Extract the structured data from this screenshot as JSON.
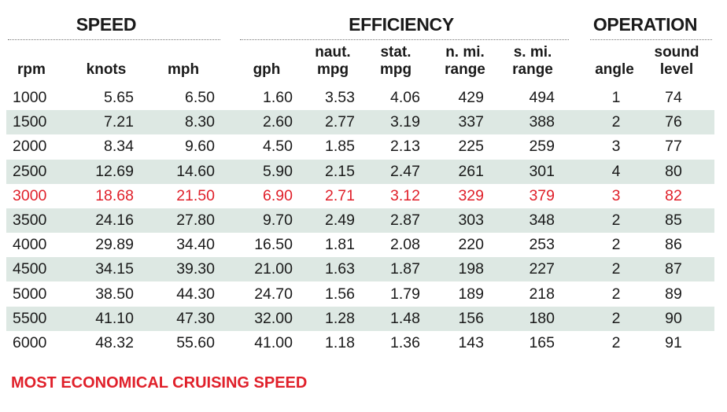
{
  "colors": {
    "highlight": "#e0202a",
    "shade": "#dde8e3",
    "text": "#1a1a1a"
  },
  "groups": {
    "speed": "SPEED",
    "efficiency": "EFFICIENCY",
    "operation": "OPERATION"
  },
  "headers": {
    "rpm": [
      "rpm"
    ],
    "knots": [
      "knots"
    ],
    "mph": [
      "mph"
    ],
    "gph": [
      "gph"
    ],
    "naut_mpg": [
      "naut.",
      "mpg"
    ],
    "stat_mpg": [
      "stat.",
      "mpg"
    ],
    "n_mi_range": [
      "n. mi.",
      "range"
    ],
    "s_mi_range": [
      "s. mi.",
      "range"
    ],
    "angle": [
      "angle"
    ],
    "sound_level": [
      "sound",
      "level"
    ]
  },
  "footnote": "MOST ECONOMICAL CRUISING SPEED",
  "chart_data": {
    "type": "table",
    "columns": [
      "rpm",
      "knots",
      "mph",
      "gph",
      "naut. mpg",
      "stat. mpg",
      "n. mi. range",
      "s. mi. range",
      "angle",
      "sound level"
    ],
    "highlight_row": 4,
    "rows": [
      [
        "1000",
        "5.65",
        "6.50",
        "1.60",
        "3.53",
        "4.06",
        "429",
        "494",
        "1",
        "74"
      ],
      [
        "1500",
        "7.21",
        "8.30",
        "2.60",
        "2.77",
        "3.19",
        "337",
        "388",
        "2",
        "76"
      ],
      [
        "2000",
        "8.34",
        "9.60",
        "4.50",
        "1.85",
        "2.13",
        "225",
        "259",
        "3",
        "77"
      ],
      [
        "2500",
        "12.69",
        "14.60",
        "5.90",
        "2.15",
        "2.47",
        "261",
        "301",
        "4",
        "80"
      ],
      [
        "3000",
        "18.68",
        "21.50",
        "6.90",
        "2.71",
        "3.12",
        "329",
        "379",
        "3",
        "82"
      ],
      [
        "3500",
        "24.16",
        "27.80",
        "9.70",
        "2.49",
        "2.87",
        "303",
        "348",
        "2",
        "85"
      ],
      [
        "4000",
        "29.89",
        "34.40",
        "16.50",
        "1.81",
        "2.08",
        "220",
        "253",
        "2",
        "86"
      ],
      [
        "4500",
        "34.15",
        "39.30",
        "21.00",
        "1.63",
        "1.87",
        "198",
        "227",
        "2",
        "87"
      ],
      [
        "5000",
        "38.50",
        "44.30",
        "24.70",
        "1.56",
        "1.79",
        "189",
        "218",
        "2",
        "89"
      ],
      [
        "5500",
        "41.10",
        "47.30",
        "32.00",
        "1.28",
        "1.48",
        "156",
        "180",
        "2",
        "90"
      ],
      [
        "6000",
        "48.32",
        "55.60",
        "41.00",
        "1.18",
        "1.36",
        "143",
        "165",
        "2",
        "91"
      ]
    ]
  }
}
